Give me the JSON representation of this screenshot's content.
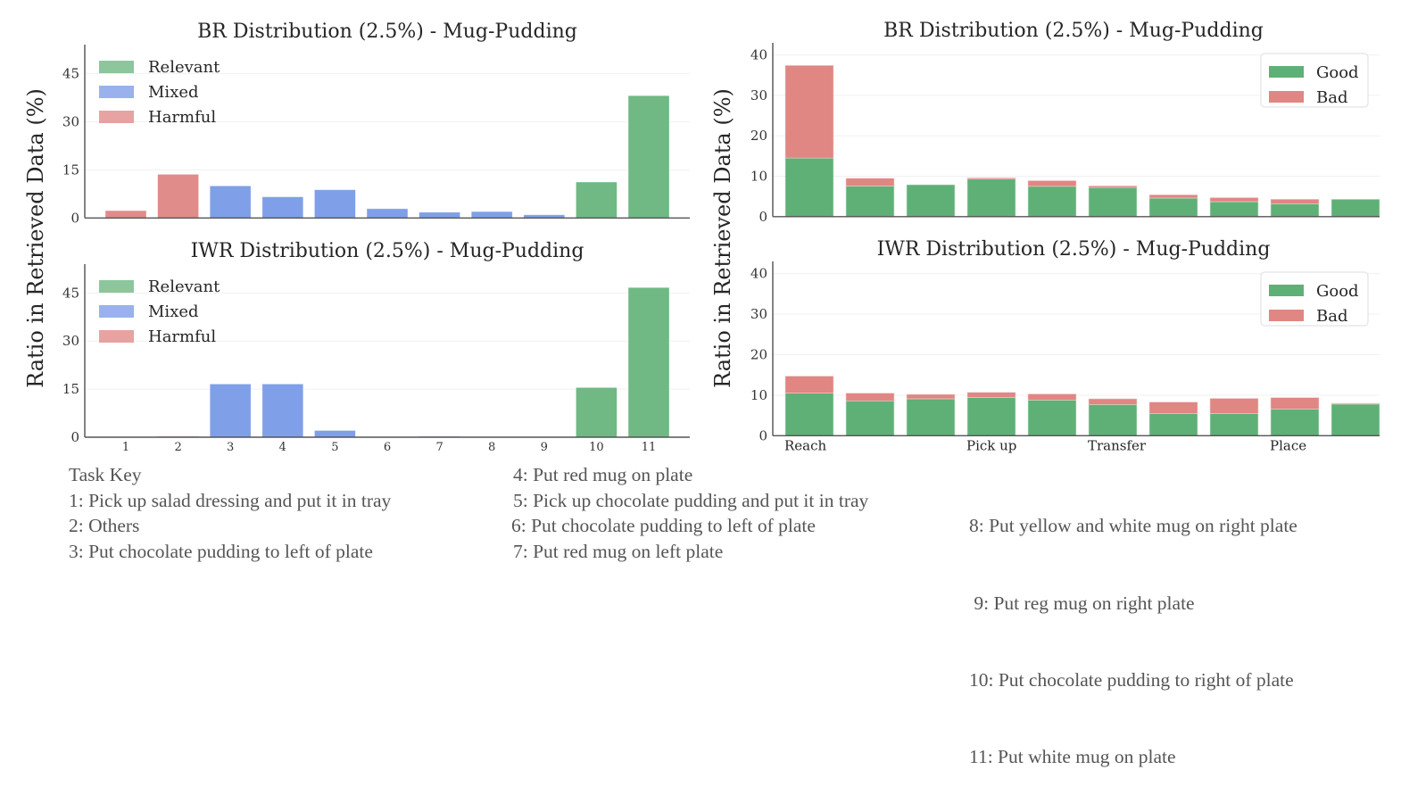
{
  "chart_data": [
    {
      "id": "br-category",
      "type": "bar",
      "title": "BR Distribution (2.5%) - Mug-Pudding",
      "xlabel": "",
      "ylabel": "Ratio in Retrieved Data (%)",
      "categories": [
        "1",
        "2",
        "3",
        "4",
        "5",
        "6",
        "7",
        "8",
        "9",
        "10",
        "11"
      ],
      "show_xticks": false,
      "values": [
        2.3,
        13.6,
        10.0,
        6.6,
        8.8,
        2.9,
        1.8,
        2.0,
        1.0,
        11.2,
        38.1
      ],
      "bar_classes": [
        "Harmful",
        "Harmful",
        "Mixed",
        "Mixed",
        "Mixed",
        "Mixed",
        "Mixed",
        "Mixed",
        "Mixed",
        "Relevant",
        "Relevant"
      ],
      "ylim": [
        0,
        54
      ],
      "yticks": [
        0,
        15,
        30,
        45
      ],
      "grid": true,
      "legend": {
        "placement": "top-left",
        "entries": [
          "Relevant",
          "Mixed",
          "Harmful"
        ]
      }
    },
    {
      "id": "iwr-category",
      "type": "bar",
      "title": "IWR Distribution (2.5%) - Mug-Pudding",
      "xlabel": "",
      "ylabel": "Ratio in Retrieved Data (%)",
      "categories": [
        "1",
        "2",
        "3",
        "4",
        "5",
        "6",
        "7",
        "8",
        "9",
        "10",
        "11"
      ],
      "show_xticks": true,
      "values": [
        0.0,
        0.3,
        16.6,
        16.6,
        2.1,
        0.0,
        0.3,
        0.1,
        0.0,
        15.5,
        46.7
      ],
      "bar_classes": [
        "Harmful",
        "Harmful",
        "Mixed",
        "Mixed",
        "Mixed",
        "Mixed",
        "Mixed",
        "Mixed",
        "Mixed",
        "Relevant",
        "Relevant"
      ],
      "ylim": [
        0,
        54
      ],
      "yticks": [
        0,
        15,
        30,
        45
      ],
      "grid": true,
      "legend": {
        "placement": "top-left",
        "entries": [
          "Relevant",
          "Mixed",
          "Harmful"
        ]
      }
    },
    {
      "id": "br-quality",
      "type": "bar",
      "stacked": true,
      "title": "BR Distribution (2.5%) - Mug-Pudding",
      "xlabel": "",
      "ylabel": "Ratio in Retrieved Data (%)",
      "categories": [
        "1",
        "2",
        "3",
        "4",
        "5",
        "6",
        "7",
        "8",
        "9",
        "10"
      ],
      "phase_labels": [],
      "series": [
        {
          "name": "Good",
          "values": [
            14.5,
            7.6,
            7.9,
            9.3,
            7.5,
            7.2,
            4.6,
            3.7,
            3.2,
            4.3
          ]
        },
        {
          "name": "Bad",
          "values": [
            22.9,
            1.9,
            0.0,
            0.3,
            1.4,
            0.4,
            0.8,
            1.0,
            1.1,
            0.0
          ]
        }
      ],
      "ylim": [
        0,
        43
      ],
      "yticks": [
        0,
        10,
        20,
        30,
        40
      ],
      "grid": true,
      "legend": {
        "placement": "top-right",
        "entries": [
          "Good",
          "Bad"
        ]
      }
    },
    {
      "id": "iwr-quality",
      "type": "bar",
      "stacked": true,
      "title": "IWR Distribution (2.5%) - Mug-Pudding",
      "xlabel": "",
      "ylabel": "Ratio in Retrieved Data (%)",
      "categories": [
        "1",
        "2",
        "3",
        "4",
        "5",
        "6",
        "7",
        "8",
        "9",
        "10"
      ],
      "phase_labels": [
        {
          "label": "Reach",
          "at_bar": 0
        },
        {
          "label": "Pick up",
          "at_bar": 3
        },
        {
          "label": "Transfer",
          "at_bar": 5
        },
        {
          "label": "Place",
          "at_bar": 8
        }
      ],
      "series": [
        {
          "name": "Good",
          "values": [
            10.5,
            8.6,
            9.1,
            9.4,
            8.8,
            7.7,
            5.5,
            5.5,
            6.6,
            7.8
          ]
        },
        {
          "name": "Bad",
          "values": [
            4.2,
            1.9,
            1.1,
            1.3,
            1.5,
            1.4,
            2.8,
            3.7,
            2.8,
            0.2
          ]
        }
      ],
      "ylim": [
        0,
        43
      ],
      "yticks": [
        0,
        10,
        20,
        30,
        40
      ],
      "grid": true,
      "legend": {
        "placement": "top-right",
        "entries": [
          "Good",
          "Bad"
        ]
      }
    }
  ],
  "colors": {
    "Relevant": "#70b884",
    "Mixed": "#7f9fe8",
    "Harmful": "#e08c8a",
    "Good": "#5fb076",
    "Bad": "#e08683"
  },
  "shared_ylabel_left": "Ratio in Retrieved Data (%)",
  "shared_ylabel_right": "Ratio in Retrieved Data (%)",
  "task_key": {
    "heading": "Task Key",
    "columns": [
      [
        "1: Pick up salad dressing and put it in tray",
        "2: Others",
        "3: Put chocolate pudding to left of plate"
      ],
      [
        "4: Put red mug on plate",
        "5: Pick up chocolate pudding and put it in tray",
        "6: Put chocolate pudding to left of plate",
        "7: Put red mug on left plate"
      ],
      [
        "8: Put yellow and white mug on right plate",
        " 9: Put reg mug on right plate",
        "10: Put chocolate pudding to right of plate",
        "11: Put white mug on plate"
      ]
    ]
  }
}
